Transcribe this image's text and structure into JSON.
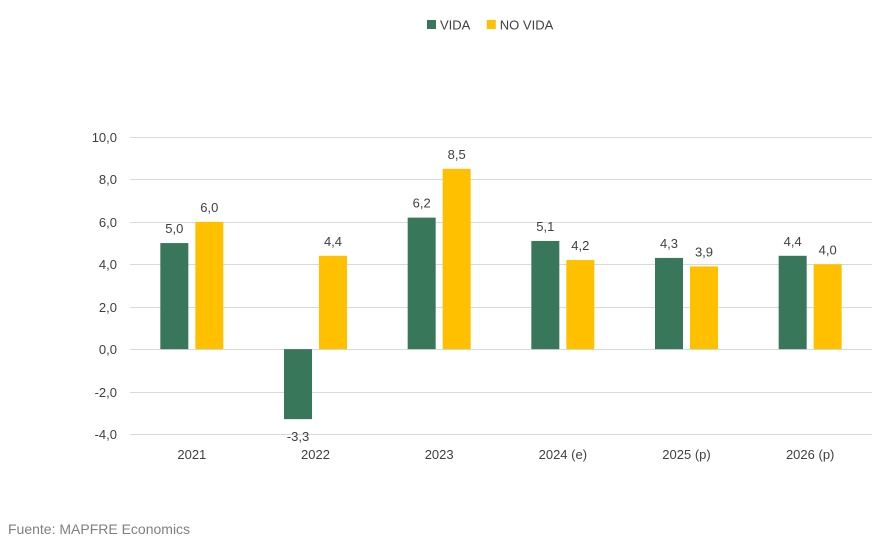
{
  "chart_data": {
    "type": "bar",
    "categories": [
      "2021",
      "2022",
      "2023",
      "2024 (e)",
      "2025 (p)",
      "2026 (p)"
    ],
    "series": [
      {
        "name": "VIDA",
        "color": "#38775a",
        "values": [
          5.0,
          -3.3,
          6.2,
          5.1,
          4.3,
          4.4
        ],
        "labels": [
          "5,0",
          "-3,3",
          "6,2",
          "5,1",
          "4,3",
          "4,4"
        ]
      },
      {
        "name": "NO VIDA",
        "color": "#ffc000",
        "values": [
          6.0,
          4.4,
          8.5,
          4.2,
          3.9,
          4.0
        ],
        "labels": [
          "6,0",
          "4,4",
          "8,5",
          "4,2",
          "3,9",
          "4,0"
        ]
      }
    ],
    "ylim": [
      -4.0,
      10.0
    ],
    "yticks": [
      10.0,
      8.0,
      6.0,
      4.0,
      2.0,
      0.0,
      -2.0,
      -4.0
    ],
    "ytick_labels": [
      "10,0",
      "8,0",
      "6,0",
      "4,0",
      "2,0",
      "0,0",
      "-2,0",
      "-4,0"
    ],
    "legend_position": "top-center",
    "grid": true,
    "gridline_color": "#d9d9d9"
  },
  "source": "Fuente: MAPFRE Economics"
}
